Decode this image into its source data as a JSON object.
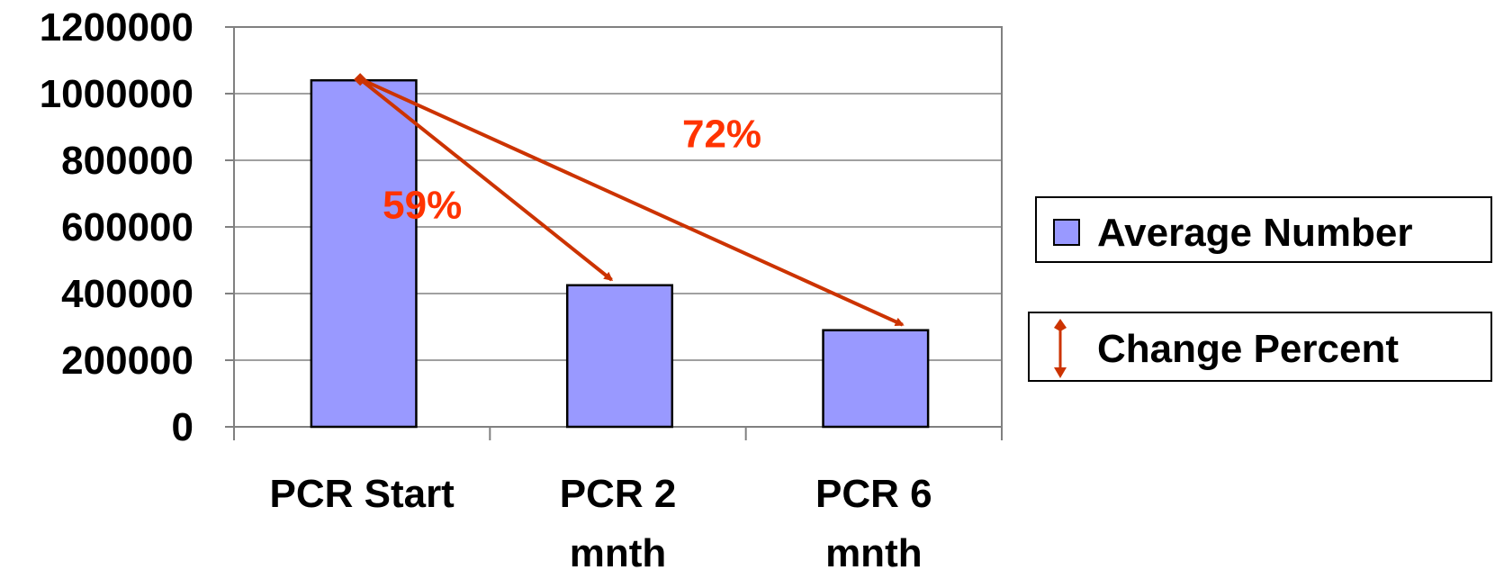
{
  "chart_data": {
    "type": "bar",
    "categories": [
      "PCR Start",
      "PCR 2 mnth",
      "PCR 6 mnth"
    ],
    "category_lines": [
      [
        "PCR Start"
      ],
      [
        "PCR 2",
        "mnth"
      ],
      [
        "PCR 6",
        "mnth"
      ]
    ],
    "series": [
      {
        "name": "Average Number",
        "values": [
          1040000,
          425000,
          290000
        ]
      }
    ],
    "ylim": [
      0,
      1200000
    ],
    "yticks": [
      0,
      200000,
      400000,
      600000,
      800000,
      1000000,
      1200000
    ],
    "grid": true,
    "legend_placement": "right",
    "annotations": [
      {
        "label": "59%",
        "from": "PCR Start",
        "to": "PCR 2 mnth"
      },
      {
        "label": "72%",
        "from": "PCR Start",
        "to": "PCR 6 mnth"
      }
    ],
    "colors": {
      "bar": "#9999ff",
      "arrow": "#cc3300",
      "annotation_text": "#ff3300",
      "grid": "#808080"
    }
  },
  "legend": {
    "items": [
      {
        "label": "Average Number",
        "symbol": "bar-swatch"
      },
      {
        "label": "Change Percent",
        "symbol": "double-arrow-icon"
      }
    ]
  }
}
